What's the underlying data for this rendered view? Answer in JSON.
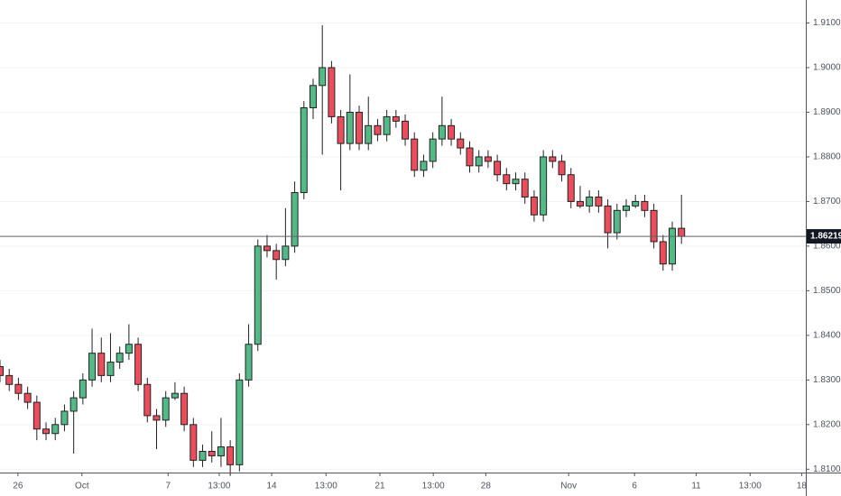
{
  "chart_data": {
    "type": "candlestick",
    "x": [
      0,
      2,
      4,
      6,
      8,
      10,
      12,
      14,
      16,
      18,
      20,
      22,
      24,
      26,
      28,
      30,
      32,
      34,
      36,
      38,
      40,
      42,
      44,
      46,
      48,
      50,
      52,
      54,
      56,
      58,
      60,
      62,
      64,
      66,
      68,
      70,
      72,
      74,
      76,
      78,
      80,
      82,
      84,
      86,
      88,
      90,
      92,
      94,
      96,
      98,
      100,
      102,
      104,
      106,
      108,
      110,
      112,
      114,
      116,
      118,
      120,
      122,
      124,
      126,
      128,
      130,
      132,
      134,
      136,
      138,
      140,
      142,
      144,
      146,
      148
    ],
    "open": [
      1.833,
      1.831,
      1.829,
      1.827,
      1.825,
      1.819,
      1.818,
      1.82,
      1.823,
      1.826,
      1.83,
      1.836,
      1.831,
      1.834,
      1.836,
      1.838,
      1.829,
      1.822,
      1.821,
      1.826,
      1.827,
      1.82,
      1.812,
      1.814,
      1.813,
      1.815,
      1.811,
      1.83,
      1.838,
      1.86,
      1.859,
      1.857,
      1.86,
      1.872,
      1.891,
      1.896,
      1.9,
      1.889,
      1.883,
      1.89,
      1.883,
      1.887,
      1.885,
      1.889,
      1.888,
      1.884,
      1.877,
      1.879,
      1.884,
      1.887,
      1.884,
      1.882,
      1.878,
      1.88,
      1.879,
      1.876,
      1.874,
      1.875,
      1.871,
      1.867,
      1.88,
      1.879,
      1.876,
      1.87,
      1.869,
      1.871,
      1.869,
      1.863,
      1.868,
      1.869,
      1.87,
      1.868,
      1.861,
      1.856,
      1.864
    ],
    "high": [
      1.8345,
      1.8325,
      1.8305,
      1.8285,
      1.8265,
      1.8205,
      1.8215,
      1.8245,
      1.8275,
      1.8315,
      1.8415,
      1.8395,
      1.8405,
      1.8375,
      1.8425,
      1.8395,
      1.8305,
      1.8235,
      1.8275,
      1.8295,
      1.8285,
      1.8215,
      1.8155,
      1.8185,
      1.8215,
      1.8165,
      1.8315,
      1.8425,
      1.8615,
      1.8625,
      1.8605,
      1.8685,
      1.8745,
      1.8925,
      1.8975,
      1.9095,
      1.9015,
      1.8905,
      1.8985,
      1.8915,
      1.8935,
      1.8885,
      1.8905,
      1.8905,
      1.8895,
      1.8855,
      1.8805,
      1.8855,
      1.8935,
      1.8885,
      1.8855,
      1.8835,
      1.8815,
      1.8815,
      1.8805,
      1.8775,
      1.8765,
      1.8765,
      1.8725,
      1.8815,
      1.8815,
      1.8805,
      1.8775,
      1.8735,
      1.8725,
      1.8725,
      1.8705,
      1.8695,
      1.8705,
      1.8715,
      1.8715,
      1.8695,
      1.8625,
      1.8655,
      1.8715
    ],
    "low": [
      1.8295,
      1.8275,
      1.8255,
      1.8235,
      1.8165,
      1.8165,
      1.8165,
      1.8185,
      1.8135,
      1.8245,
      1.8285,
      1.8295,
      1.8295,
      1.8325,
      1.8345,
      1.8275,
      1.8205,
      1.8145,
      1.8195,
      1.8255,
      1.8185,
      1.8105,
      1.8105,
      1.8115,
      1.8105,
      1.8085,
      1.8095,
      1.8285,
      1.8365,
      1.8575,
      1.8525,
      1.8555,
      1.8585,
      1.8705,
      1.8885,
      1.8805,
      1.8875,
      1.8725,
      1.8815,
      1.8815,
      1.8815,
      1.8835,
      1.8835,
      1.8865,
      1.8825,
      1.8755,
      1.8755,
      1.8775,
      1.8825,
      1.8825,
      1.8805,
      1.8765,
      1.8765,
      1.8775,
      1.8745,
      1.8725,
      1.8725,
      1.8695,
      1.8655,
      1.8655,
      1.8775,
      1.8745,
      1.8685,
      1.8685,
      1.8675,
      1.8675,
      1.8595,
      1.8615,
      1.8665,
      1.8685,
      1.8665,
      1.8595,
      1.8545,
      1.8545,
      1.8605
    ],
    "close": [
      1.831,
      1.829,
      1.827,
      1.825,
      1.819,
      1.818,
      1.82,
      1.823,
      1.826,
      1.83,
      1.836,
      1.831,
      1.834,
      1.836,
      1.838,
      1.829,
      1.822,
      1.821,
      1.826,
      1.827,
      1.82,
      1.812,
      1.814,
      1.813,
      1.815,
      1.811,
      1.83,
      1.838,
      1.86,
      1.859,
      1.857,
      1.86,
      1.872,
      1.891,
      1.896,
      1.9,
      1.889,
      1.883,
      1.89,
      1.883,
      1.887,
      1.885,
      1.889,
      1.888,
      1.884,
      1.877,
      1.879,
      1.884,
      1.887,
      1.884,
      1.882,
      1.878,
      1.88,
      1.879,
      1.876,
      1.874,
      1.875,
      1.871,
      1.867,
      1.88,
      1.879,
      1.876,
      1.87,
      1.869,
      1.871,
      1.869,
      1.863,
      1.868,
      1.869,
      1.87,
      1.868,
      1.861,
      1.856,
      1.864,
      1.86219
    ],
    "up_color": "#53b987",
    "down_color": "#eb4d5c",
    "xlim": [
      0,
      175
    ],
    "xticks": [
      {
        "value": 3.9,
        "label": "26"
      },
      {
        "value": 17.8,
        "label": "Oct"
      },
      {
        "value": 36.5,
        "label": "7"
      },
      {
        "value": 47.6,
        "label": "13:00"
      },
      {
        "value": 59,
        "label": "14"
      },
      {
        "value": 70.8,
        "label": "13:00"
      },
      {
        "value": 82.5,
        "label": "21"
      },
      {
        "value": 94.1,
        "label": "13:00"
      },
      {
        "value": 105.5,
        "label": "28"
      },
      {
        "value": 123.5,
        "label": "Nov"
      },
      {
        "value": 137.8,
        "label": "6"
      },
      {
        "value": 151.2,
        "label": "11"
      },
      {
        "value": 162.9,
        "label": "13:00"
      },
      {
        "value": 174.1,
        "label": "18"
      }
    ],
    "ylim": [
      1.80925,
      1.91516
    ],
    "yticks": [
      {
        "value": 1.81,
        "label": "1.81000"
      },
      {
        "value": 1.82,
        "label": "1.82000"
      },
      {
        "value": 1.83,
        "label": "1.83000"
      },
      {
        "value": 1.84,
        "label": "1.84000"
      },
      {
        "value": 1.85,
        "label": "1.85000"
      },
      {
        "value": 1.86,
        "label": "1.86000"
      },
      {
        "value": 1.87,
        "label": "1.87000"
      },
      {
        "value": 1.88,
        "label": "1.88000"
      },
      {
        "value": 1.89,
        "label": "1.89000"
      },
      {
        "value": 1.9,
        "label": "1.90000"
      },
      {
        "value": 1.91,
        "label": "1.91000"
      }
    ],
    "grid": true,
    "last_price": 1.86219
  }
}
